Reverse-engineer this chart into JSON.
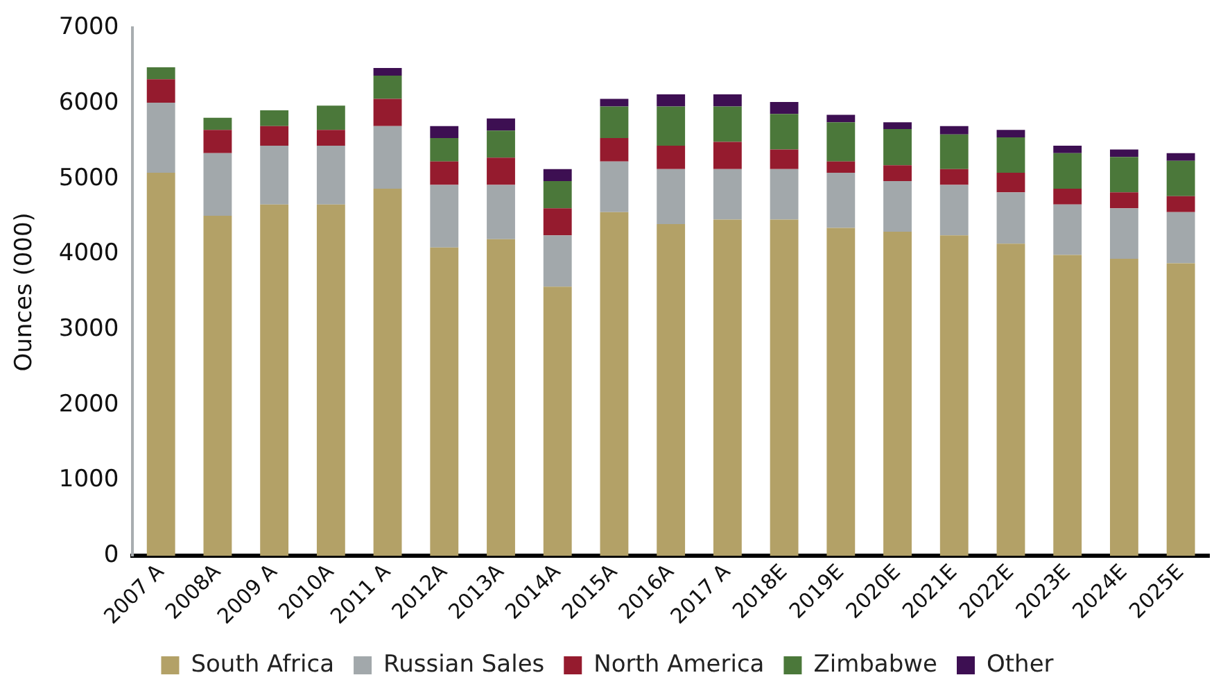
{
  "chart_data": {
    "type": "bar",
    "stacked": true,
    "ylabel": "Ounces (000)",
    "ylim": [
      0,
      7000
    ],
    "yticks": [
      0,
      1000,
      2000,
      3000,
      4000,
      5000,
      6000,
      7000
    ],
    "grid": false,
    "legend": "bottom",
    "categories": [
      "2007 A",
      "2008A",
      "2009 A",
      "2010A",
      "2011 A",
      "2012A",
      "2013A",
      "2014A",
      "2015A",
      "2016A",
      "2017 A",
      "2018E",
      "2019E",
      "2020E",
      "2021E",
      "2022E",
      "2023E",
      "2024E",
      "2025E"
    ],
    "series": [
      {
        "name": "South Africa",
        "color": "#b3a167",
        "values": [
          5080,
          4510,
          4660,
          4660,
          4870,
          4090,
          4200,
          3570,
          4560,
          4400,
          4460,
          4460,
          4350,
          4300,
          4250,
          4140,
          3990,
          3940,
          3880
        ]
      },
      {
        "name": "Russian Sales",
        "color": "#a2a8ab",
        "values": [
          930,
          830,
          780,
          780,
          830,
          830,
          720,
          680,
          670,
          730,
          670,
          670,
          730,
          670,
          670,
          680,
          670,
          670,
          680
        ]
      },
      {
        "name": "North America",
        "color": "#951b2e",
        "values": [
          310,
          310,
          260,
          210,
          360,
          310,
          360,
          360,
          310,
          310,
          360,
          260,
          150,
          210,
          210,
          260,
          210,
          210,
          210
        ]
      },
      {
        "name": "Zimbabwe",
        "color": "#4b783a",
        "values": [
          160,
          160,
          210,
          320,
          310,
          310,
          360,
          360,
          420,
          520,
          470,
          470,
          520,
          480,
          460,
          470,
          470,
          470,
          470
        ]
      },
      {
        "name": "Other",
        "color": "#3d0f52",
        "values": [
          0,
          0,
          0,
          0,
          100,
          160,
          160,
          160,
          100,
          160,
          160,
          160,
          100,
          90,
          110,
          100,
          100,
          100,
          100
        ]
      }
    ]
  }
}
